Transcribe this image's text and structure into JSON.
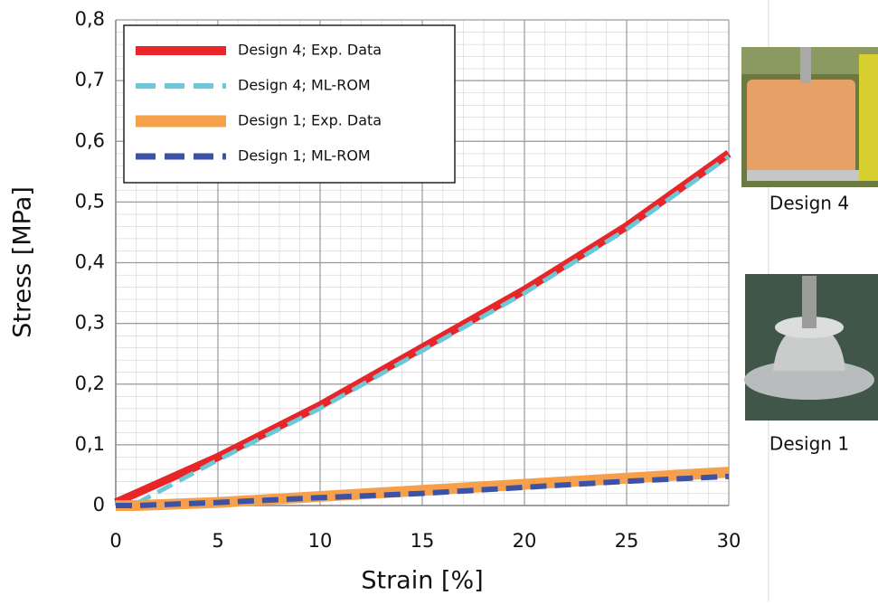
{
  "chart_data": {
    "type": "line",
    "x_label": "Strain [%]",
    "y_label": "Stress [MPa]",
    "x": [
      0,
      1,
      5,
      10,
      15,
      20,
      25,
      30
    ],
    "series": [
      {
        "name": "Design 4; Exp. Data",
        "color": "#e8262a",
        "dashed": false,
        "values": [
          0.005,
          0.02,
          0.08,
          0.165,
          0.26,
          0.355,
          0.46,
          0.58
        ]
      },
      {
        "name": "Design 4; ML-ROM",
        "color": "#6cc8d8",
        "dashed": true,
        "values": [
          null,
          0.003,
          0.075,
          0.16,
          0.255,
          0.35,
          0.455,
          0.575
        ]
      },
      {
        "name": "Design 1; Exp. Data",
        "color": "#f6a04b",
        "dashed": false,
        "values": [
          0,
          0,
          0.005,
          0.015,
          0.025,
          0.035,
          0.045,
          0.055
        ]
      },
      {
        "name": "Design 1; ML-ROM",
        "color": "#3b52a6",
        "dashed": true,
        "values": [
          0,
          0,
          0.005,
          0.013,
          0.02,
          0.03,
          0.04,
          0.048
        ]
      }
    ],
    "xlim": [
      0,
      30
    ],
    "xticks": [
      0,
      5,
      10,
      15,
      20,
      25,
      30
    ],
    "ylim": [
      0,
      0.8
    ],
    "yticks": [
      0,
      {
        "value": 0.1,
        "label": "0,1"
      },
      {
        "value": 0.2,
        "label": "0,2"
      },
      {
        "value": 0.3,
        "label": "0,3"
      },
      {
        "value": 0.4,
        "label": "0,4"
      },
      {
        "value": 0.5,
        "label": "0,5"
      },
      {
        "value": 0.6,
        "label": "0,6"
      },
      {
        "value": 0.7,
        "label": "0,7"
      },
      {
        "value": 0.8,
        "label": "0,8"
      }
    ],
    "grid": true,
    "legend": "upper left"
  },
  "photos": [
    {
      "caption": "Design 4"
    },
    {
      "caption": "Design 1"
    }
  ]
}
